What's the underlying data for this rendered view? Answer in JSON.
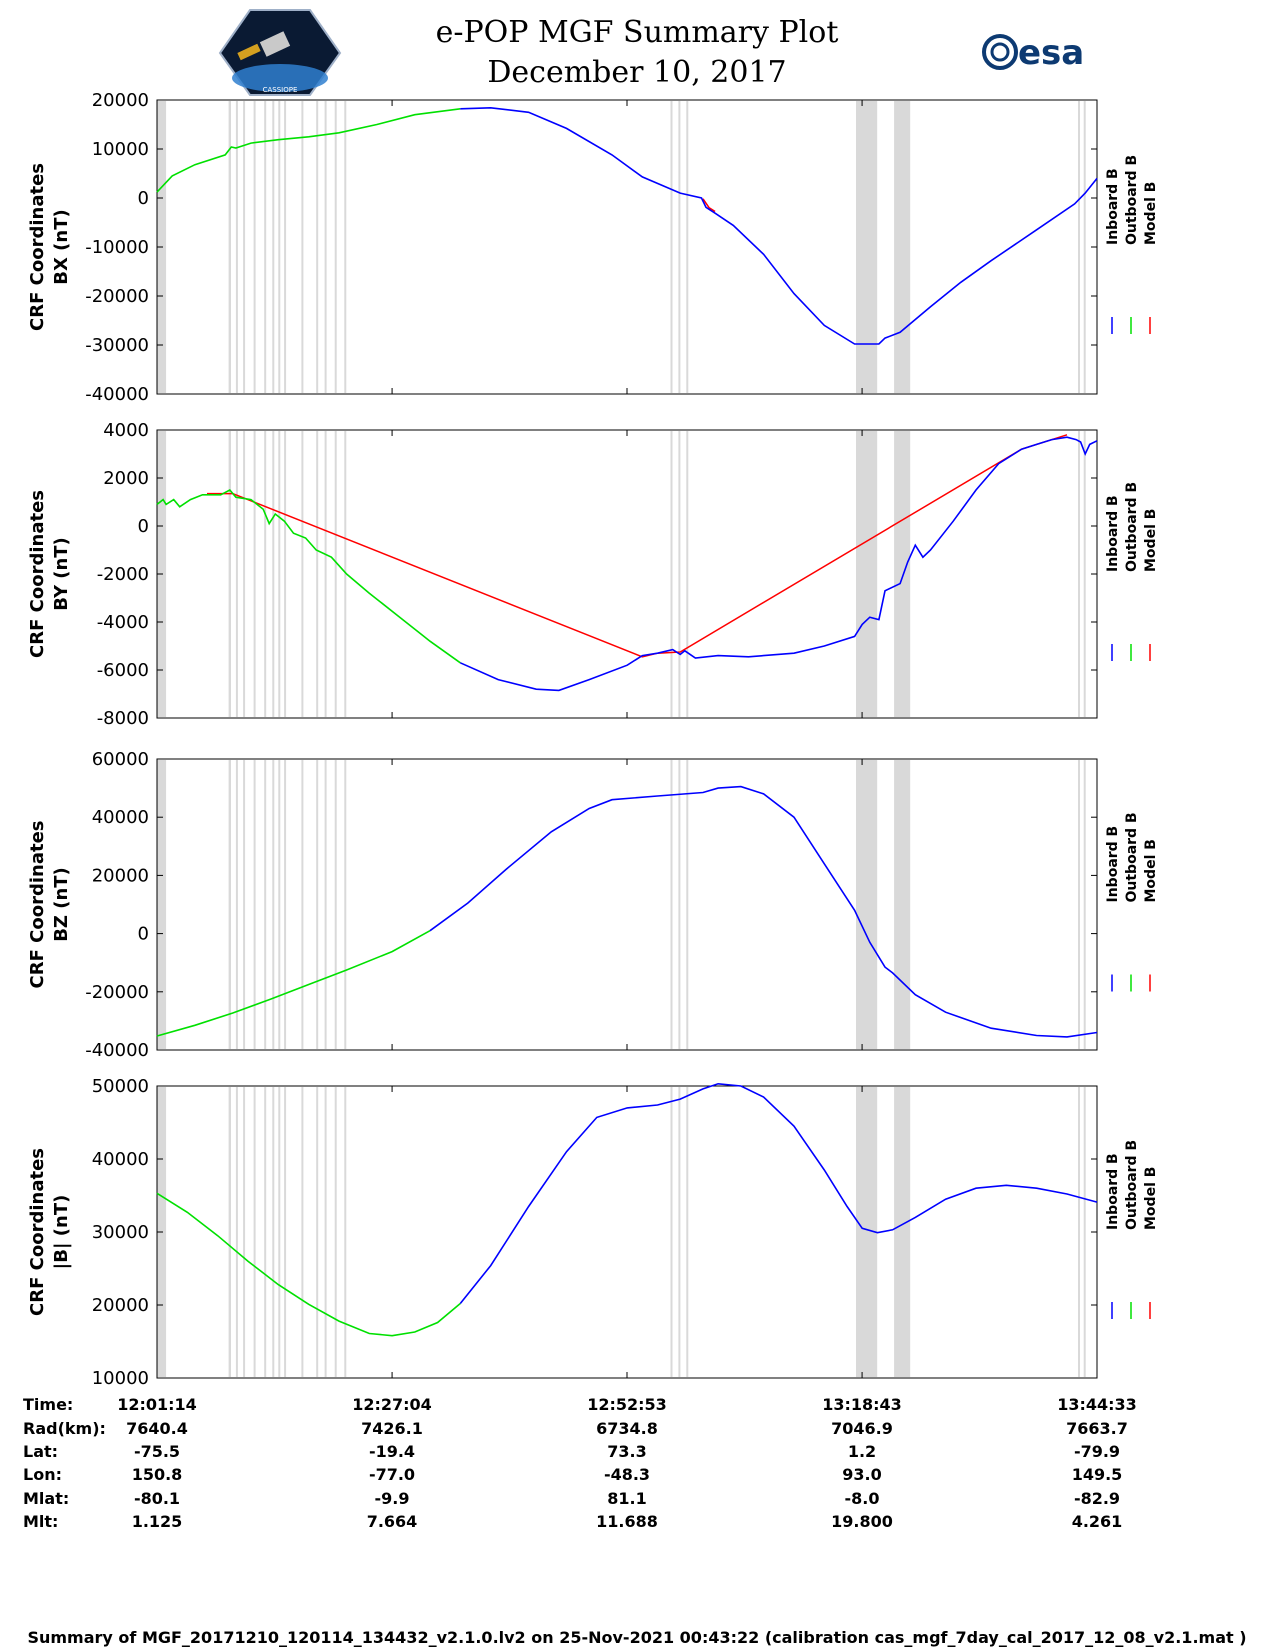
{
  "title": "e-POP MGF Summary Plot",
  "subtitle": "December 10, 2017",
  "logo_left": {
    "text": "CASSIOPE",
    "icon": "cassiope-mission-logo"
  },
  "logo_right": {
    "text": "esa",
    "icon": "esa-logo"
  },
  "colors": {
    "inboard": "#0000ff",
    "outboard": "#00e000",
    "model": "#ff0000",
    "gap": "#d9d9d9"
  },
  "legend": {
    "inboard": "Inboard B",
    "outboard": "Outboard B",
    "model": "Model B"
  },
  "time_axis": {
    "start_s": 0,
    "end_s": 6198,
    "ticks_s": [
      0,
      1550,
      3099,
      4649,
      6199
    ]
  },
  "info_table": {
    "labels": [
      "Time:",
      "Rad(km):",
      "Lat:",
      "Lon:",
      "Mlat:",
      "Mlt:"
    ],
    "columns": [
      [
        "12:01:14",
        "7640.4",
        "-75.5",
        "150.8",
        "-80.1",
        "1.125"
      ],
      [
        "12:27:04",
        "7426.1",
        "-19.4",
        "-77.0",
        "-9.9",
        "7.664"
      ],
      [
        "12:52:53",
        "6734.8",
        "73.3",
        "-48.3",
        "81.1",
        "11.688"
      ],
      [
        "13:18:43",
        "7046.9",
        "1.2",
        "93.0",
        "-8.0",
        "19.800"
      ],
      [
        "13:44:33",
        "7663.7",
        "-79.9",
        "149.5",
        "-82.9",
        "4.261"
      ]
    ]
  },
  "footer": "Summary of MGF_20171210_120114_134432_v2.1.0.lv2 on 25-Nov-2021 00:43:22 (calibration cas_mgf_7day_cal_2017_12_08_v2.1.mat )",
  "chart_data": {
    "type": "line",
    "x_units": "seconds since 12:01:14",
    "gap_intervals_s": [
      [
        0,
        60
      ],
      [
        472,
        488
      ],
      [
        520,
        533
      ],
      [
        568,
        581
      ],
      [
        637,
        650
      ],
      [
        707,
        720
      ],
      [
        760,
        773
      ],
      [
        800,
        813
      ],
      [
        838,
        851
      ],
      [
        952,
        965
      ],
      [
        1050,
        1063
      ],
      [
        1105,
        1118
      ],
      [
        1172,
        1185
      ],
      [
        1235,
        1248
      ],
      [
        3386,
        3399
      ],
      [
        3438,
        3451
      ],
      [
        3490,
        3503
      ],
      [
        4609,
        4749
      ],
      [
        4860,
        4966
      ],
      [
        6073,
        6086
      ],
      [
        6110,
        6123
      ]
    ],
    "outboard_end_s": 2000,
    "panels": [
      {
        "id": "bx",
        "ylabel_lines": [
          "CRF Coordinates",
          "BX (nT)"
        ],
        "ylim": [
          -40000,
          20000
        ],
        "yticks": [
          20000,
          10000,
          0,
          -10000,
          -20000,
          -30000,
          -40000
        ],
        "points": [
          [
            0,
            1200
          ],
          [
            100,
            4500
          ],
          [
            250,
            6800
          ],
          [
            450,
            8800
          ],
          [
            490,
            10400
          ],
          [
            520,
            10200
          ],
          [
            620,
            11200
          ],
          [
            800,
            11900
          ],
          [
            1000,
            12500
          ],
          [
            1200,
            13300
          ],
          [
            1450,
            15000
          ],
          [
            1700,
            17000
          ],
          [
            2000,
            18200
          ],
          [
            2200,
            18400
          ],
          [
            2450,
            17500
          ],
          [
            2700,
            14200
          ],
          [
            3000,
            8800
          ],
          [
            3200,
            4300
          ],
          [
            3450,
            1000
          ],
          [
            3590,
            0
          ],
          [
            3620,
            -1900
          ],
          [
            3680,
            -3100
          ],
          [
            3800,
            -5600
          ],
          [
            4000,
            -11500
          ],
          [
            4200,
            -19500
          ],
          [
            4400,
            -26000
          ],
          [
            4600,
            -29800
          ],
          [
            4760,
            -29800
          ],
          [
            4800,
            -28600
          ],
          [
            4900,
            -27400
          ],
          [
            5100,
            -22200
          ],
          [
            5300,
            -17200
          ],
          [
            5500,
            -12800
          ],
          [
            5800,
            -6500
          ],
          [
            6050,
            -1200
          ],
          [
            6120,
            1000
          ],
          [
            6198,
            4000
          ]
        ],
        "model_points": [
          [
            3600,
            -400
          ],
          [
            3640,
            -2200
          ],
          [
            3680,
            -3000
          ]
        ]
      },
      {
        "id": "by",
        "ylabel_lines": [
          "CRF Coordinates",
          "BY (nT)"
        ],
        "ylim": [
          -8000,
          4000
        ],
        "yticks": [
          4000,
          2000,
          0,
          -2000,
          -4000,
          -6000,
          -8000
        ],
        "points": [
          [
            0,
            900
          ],
          [
            40,
            1100
          ],
          [
            60,
            900
          ],
          [
            110,
            1100
          ],
          [
            150,
            800
          ],
          [
            220,
            1100
          ],
          [
            300,
            1300
          ],
          [
            420,
            1300
          ],
          [
            480,
            1500
          ],
          [
            520,
            1200
          ],
          [
            620,
            1100
          ],
          [
            700,
            700
          ],
          [
            740,
            100
          ],
          [
            780,
            500
          ],
          [
            840,
            200
          ],
          [
            900,
            -300
          ],
          [
            980,
            -500
          ],
          [
            1050,
            -1000
          ],
          [
            1150,
            -1300
          ],
          [
            1250,
            -2000
          ],
          [
            1400,
            -2800
          ],
          [
            1600,
            -3800
          ],
          [
            1800,
            -4800
          ],
          [
            2000,
            -5700
          ],
          [
            2250,
            -6400
          ],
          [
            2500,
            -6800
          ],
          [
            2650,
            -6850
          ],
          [
            2850,
            -6400
          ],
          [
            3100,
            -5800
          ],
          [
            3200,
            -5400
          ],
          [
            3300,
            -5300
          ],
          [
            3400,
            -5150
          ],
          [
            3450,
            -5350
          ],
          [
            3480,
            -5200
          ],
          [
            3550,
            -5500
          ],
          [
            3700,
            -5400
          ],
          [
            3900,
            -5450
          ],
          [
            4200,
            -5300
          ],
          [
            4400,
            -5000
          ],
          [
            4600,
            -4600
          ],
          [
            4650,
            -4100
          ],
          [
            4700,
            -3800
          ],
          [
            4760,
            -3900
          ],
          [
            4800,
            -2700
          ],
          [
            4900,
            -2400
          ],
          [
            4950,
            -1500
          ],
          [
            5000,
            -800
          ],
          [
            5050,
            -1300
          ],
          [
            5100,
            -1000
          ],
          [
            5250,
            200
          ],
          [
            5400,
            1500
          ],
          [
            5550,
            2600
          ],
          [
            5700,
            3200
          ],
          [
            5800,
            3400
          ],
          [
            5900,
            3600
          ],
          [
            6000,
            3700
          ],
          [
            6060,
            3600
          ],
          [
            6090,
            3500
          ],
          [
            6120,
            3000
          ],
          [
            6150,
            3400
          ],
          [
            6198,
            3550
          ]
        ],
        "model_points": [
          [
            330,
            1300
          ],
          [
            500,
            1300
          ],
          [
            3200,
            -5500
          ],
          [
            3300,
            -5350
          ],
          [
            3450,
            -5300
          ],
          [
            5700,
            3150
          ],
          [
            6000,
            3750
          ]
        ]
      },
      {
        "id": "bz",
        "ylabel_lines": [
          "CRF Coordinates",
          "BZ (nT)"
        ],
        "ylim": [
          -40000,
          60000
        ],
        "yticks": [
          60000,
          40000,
          20000,
          0,
          -20000,
          -40000
        ],
        "points": [
          [
            0,
            -35200
          ],
          [
            250,
            -31500
          ],
          [
            500,
            -27300
          ],
          [
            750,
            -22500
          ],
          [
            1000,
            -17500
          ],
          [
            1250,
            -12500
          ],
          [
            1550,
            -6200
          ],
          [
            1800,
            1000
          ],
          [
            2050,
            10500
          ],
          [
            2300,
            22000
          ],
          [
            2600,
            35000
          ],
          [
            2850,
            43000
          ],
          [
            3000,
            46000
          ],
          [
            3300,
            47300
          ],
          [
            3600,
            48500
          ],
          [
            3700,
            50000
          ],
          [
            3850,
            50500
          ],
          [
            4000,
            48000
          ],
          [
            4200,
            40000
          ],
          [
            4400,
            24000
          ],
          [
            4600,
            8000
          ],
          [
            4700,
            -3000
          ],
          [
            4800,
            -11500
          ],
          [
            4850,
            -13500
          ],
          [
            5000,
            -21000
          ],
          [
            5200,
            -27000
          ],
          [
            5500,
            -32500
          ],
          [
            5800,
            -35000
          ],
          [
            6000,
            -35500
          ],
          [
            6198,
            -34000
          ]
        ],
        "model_points": []
      },
      {
        "id": "bmag",
        "ylabel_lines": [
          "CRF Coordinates",
          "|B| (nT)"
        ],
        "ylim": [
          10000,
          50000
        ],
        "yticks": [
          50000,
          40000,
          30000,
          20000,
          10000
        ],
        "points": [
          [
            0,
            35300
          ],
          [
            200,
            32700
          ],
          [
            400,
            29500
          ],
          [
            600,
            26000
          ],
          [
            800,
            22800
          ],
          [
            1000,
            20100
          ],
          [
            1200,
            17800
          ],
          [
            1400,
            16100
          ],
          [
            1550,
            15800
          ],
          [
            1700,
            16300
          ],
          [
            1850,
            17600
          ],
          [
            2000,
            20200
          ],
          [
            2200,
            25400
          ],
          [
            2450,
            33500
          ],
          [
            2700,
            41000
          ],
          [
            2900,
            45700
          ],
          [
            3100,
            47000
          ],
          [
            3300,
            47400
          ],
          [
            3450,
            48200
          ],
          [
            3600,
            49600
          ],
          [
            3700,
            50300
          ],
          [
            3850,
            50000
          ],
          [
            4000,
            48500
          ],
          [
            4200,
            44500
          ],
          [
            4400,
            38500
          ],
          [
            4550,
            33500
          ],
          [
            4650,
            30500
          ],
          [
            4750,
            29900
          ],
          [
            4850,
            30300
          ],
          [
            5000,
            32000
          ],
          [
            5200,
            34500
          ],
          [
            5400,
            36000
          ],
          [
            5600,
            36400
          ],
          [
            5800,
            36000
          ],
          [
            6000,
            35200
          ],
          [
            6198,
            34100
          ]
        ],
        "model_points": []
      }
    ]
  }
}
